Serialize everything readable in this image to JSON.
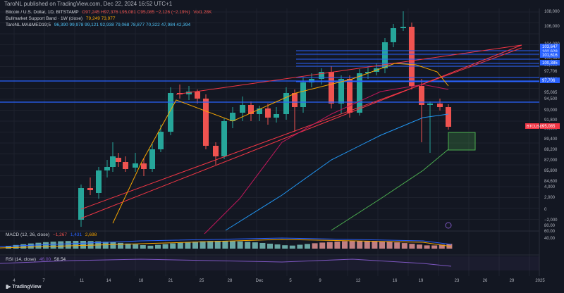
{
  "header": {
    "published": "TaroNL published on TradingView.com, Dec 22, 2024 16:52 UTC+1"
  },
  "legend": {
    "symbol": "Bitcoin / U.S. Dollar, 1D, BITSTAMP",
    "ohlc": "O97,245 H97,376 L95,081 C95,085 −2,126 (−2.19%)",
    "vol": "Vol1.28K",
    "bmsb": "Bullmarket Support Band · 1W (close)",
    "bmsb_vals": "79,249  73,977",
    "ma_name": "TaroNL.MA&MED19;5",
    "ma_vals": "96,390  99,978  99,121  92,938  79,068  78,877  70,322  47,984  42,394"
  },
  "macd": {
    "label": "MACD (12, 26, close)",
    "v1": "−1,267",
    "v2": "1,431",
    "v3": "2,698"
  },
  "rsi": {
    "label": "RSI (14, close)",
    "v1": "46.00",
    "v2": "58.54"
  },
  "price_axis": [
    "108,000",
    "106,000",
    "104,000",
    "103,647",
    "102,628",
    "101,616",
    "100,385",
    "99,000",
    "97,706",
    "96,000",
    "95,085",
    "94,500",
    "93,000",
    "91,800",
    "90,600",
    "89,400",
    "88,200",
    "87,000",
    "85,800",
    "84,600",
    "4,000",
    "2,000",
    "0",
    "−2,000",
    "80.00",
    "60.00",
    "40.00"
  ],
  "price_tags": {
    "h1": "103,647",
    "h2": "102,628",
    "h3": "101,616",
    "h4": "100,385",
    "h5": "97,706",
    "last": "95,085",
    "sym": "BTCUSD"
  },
  "date_axis": [
    "4",
    "7",
    "11",
    "14",
    "18",
    "21",
    "25",
    "28",
    "Dec",
    "5",
    "9",
    "12",
    "16",
    "19",
    "23",
    "26",
    "29",
    "2025"
  ],
  "footer": {
    "brand": "TradingView"
  },
  "colors": {
    "bg": "#131722",
    "up": "#26a69a",
    "down": "#ef5350",
    "hline": "#2962ff",
    "wedge": "#f23645",
    "orange": "#f7a600",
    "teal": "#2196f3",
    "green": "#4caf50"
  }
}
